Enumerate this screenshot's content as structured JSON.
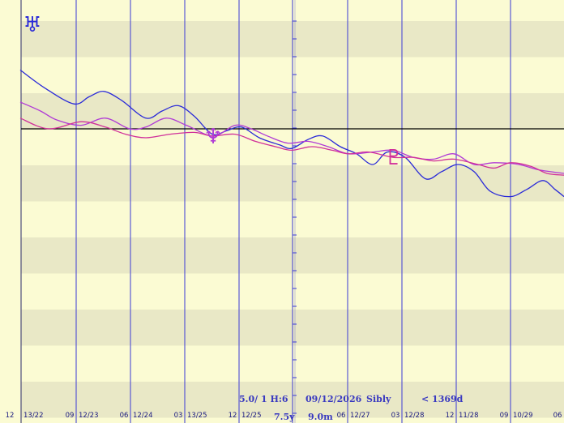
{
  "colors": {
    "background": "#fbfbd3",
    "band": "#e9e8c6",
    "grid": "#3a3ad6",
    "axis": "#000000",
    "uranus": "#2a2ad8",
    "neptune": "#b03ad6",
    "pluto": "#d0309a",
    "info_text": "#3a3ac0",
    "tick_text": "#1a1a80"
  },
  "chart_data": {
    "type": "line",
    "title": "",
    "xlabel": "",
    "ylabel": "",
    "grid": true,
    "ylim": [
      -8,
      3.6
    ],
    "xlim": [
      0,
      696
    ],
    "ticks": [
      {
        "x": 0,
        "hour": "12",
        "date": "13/22"
      },
      {
        "x": 94,
        "hour": "09",
        "date": "12/23"
      },
      {
        "x": 161,
        "hour": "06",
        "date": "12/24"
      },
      {
        "x": 228,
        "hour": "03",
        "date": "13/25"
      },
      {
        "x": 295,
        "hour": "12",
        "date": "12/25"
      },
      {
        "x": 429,
        "hour": "06",
        "date": "12/27"
      },
      {
        "x": 496,
        "hour": "03",
        "date": "12/28"
      },
      {
        "x": 563,
        "hour": "12",
        "date": "11/28"
      },
      {
        "x": 630,
        "hour": "09",
        "date": "10/29"
      },
      {
        "x": 696,
        "hour": "06",
        "date": ""
      }
    ],
    "glyphs": [
      {
        "symbol": "♅",
        "name": "Uranus",
        "series": "uranus",
        "x": 40
      },
      {
        "symbol": "♆",
        "name": "Neptune",
        "series": "neptune",
        "x": 263
      },
      {
        "symbol": "♇",
        "name": "Pluto",
        "series": "pluto",
        "x": 486
      }
    ],
    "series": [
      {
        "key": "uranus",
        "color": "#2a2ad8",
        "x": [
          25,
          55,
          91,
          110,
          128,
          150,
          180,
          200,
          220,
          240,
          262,
          280,
          298,
          320,
          345,
          360,
          380,
          398,
          420,
          440,
          460,
          478,
          500,
          525,
          545,
          565,
          585,
          605,
          630,
          650,
          670,
          685,
          696
        ],
        "y": [
          3.3,
          2.3,
          1.4,
          1.8,
          2.1,
          1.6,
          0.6,
          1.0,
          1.3,
          0.7,
          -0.3,
          -0.1,
          0.1,
          -0.5,
          -0.9,
          -1.1,
          -0.6,
          -0.4,
          -1.0,
          -1.4,
          -2.0,
          -1.3,
          -1.6,
          -2.8,
          -2.4,
          -2.0,
          -2.4,
          -3.5,
          -3.8,
          -3.4,
          -2.9,
          -3.4,
          -3.8
        ]
      },
      {
        "key": "neptune",
        "color": "#b03ad6",
        "x": [
          25,
          50,
          70,
          100,
          130,
          160,
          180,
          205,
          230,
          263,
          290,
          310,
          330,
          355,
          380,
          405,
          430,
          460,
          485,
          510,
          535,
          560,
          585,
          610,
          640,
          665,
          696
        ],
        "y": [
          1.5,
          1.0,
          0.5,
          0.2,
          0.6,
          0.0,
          0.1,
          0.6,
          0.2,
          -0.4,
          0.2,
          0.0,
          -0.4,
          -0.8,
          -0.7,
          -1.0,
          -1.4,
          -1.3,
          -1.2,
          -1.6,
          -1.7,
          -1.4,
          -2.0,
          -1.9,
          -2.0,
          -2.3,
          -2.5
        ]
      },
      {
        "key": "pluto",
        "color": "#d0309a",
        "x": [
          25,
          60,
          100,
          130,
          155,
          180,
          210,
          240,
          262,
          290,
          315,
          340,
          360,
          385,
          410,
          430,
          455,
          485,
          510,
          535,
          560,
          590,
          610,
          630,
          655,
          675,
          696
        ],
        "y": [
          0.6,
          0.0,
          0.4,
          0.1,
          -0.3,
          -0.5,
          -0.3,
          -0.2,
          -0.4,
          -0.3,
          -0.7,
          -1.0,
          -1.2,
          -1.0,
          -1.2,
          -1.4,
          -1.3,
          -1.6,
          -1.6,
          -1.8,
          -1.7,
          -2.0,
          -2.2,
          -1.9,
          -2.1,
          -2.5,
          -2.6
        ]
      }
    ]
  },
  "info": {
    "line1_left": "5.0/ 1 H:6",
    "line1_date": "09/12/2026",
    "line1_name": "Sibly",
    "line1_right": "< 1369d",
    "line2_left": "7.5y",
    "line2_right": "9.0m"
  }
}
